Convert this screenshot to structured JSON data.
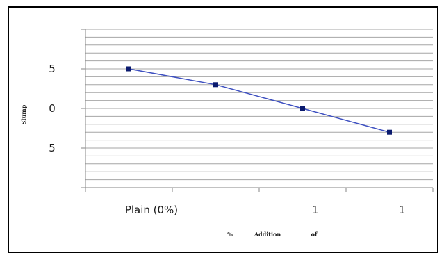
{
  "chart_data": {
    "type": "line",
    "title": "",
    "ylabel": "Slump",
    "xlabel_words": [
      "%",
      "Addition",
      "of"
    ],
    "x_tick_labels": [
      "Plain (0%)",
      "",
      "1",
      "1"
    ],
    "y_tick_labels": [
      "5",
      "0",
      "5"
    ],
    "ylim": [
      -10,
      10
    ],
    "grid": true,
    "series": [
      {
        "values": [
          5.0,
          3.0,
          0.0,
          -3.0
        ]
      }
    ],
    "colors": {
      "line": "#3d4fc0",
      "marker": "#0a1a6e",
      "grid": "#a6a6a6",
      "axis": "#868686"
    }
  }
}
